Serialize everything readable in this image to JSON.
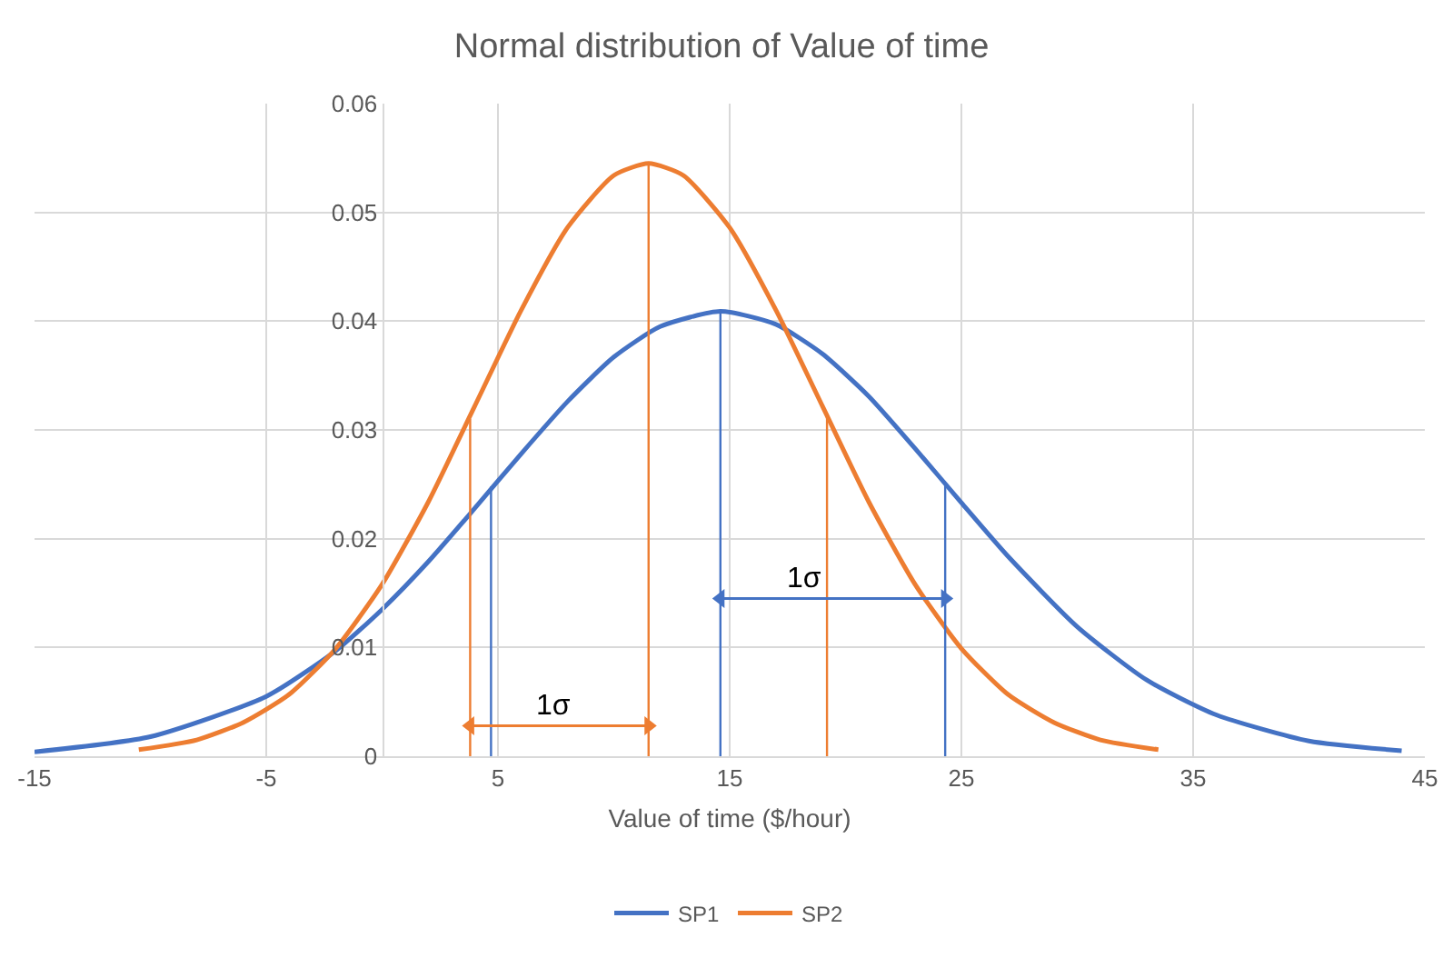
{
  "chart_data": {
    "type": "line",
    "title": "Normal distribution of Value of time",
    "xlabel": "Value of time ($/hour)",
    "xlim": [
      -15,
      45
    ],
    "xticks": [
      -15,
      -5,
      5,
      15,
      25,
      35,
      45
    ],
    "ylim": [
      0,
      0.06
    ],
    "yticks": [
      0,
      0.01,
      0.02,
      0.03,
      0.04,
      0.05,
      0.06
    ],
    "grid": true,
    "legend": "bottom",
    "marker": "none",
    "line_style": "solid",
    "series": [
      {
        "name": "SP1",
        "color": "#4472c4",
        "x": [
          -15,
          -10,
          -5,
          -2,
          0,
          2,
          4,
          6,
          8,
          10,
          12,
          14.6,
          17,
          19,
          21,
          23,
          25,
          27,
          30,
          33,
          36,
          40,
          44
        ],
        "values": [
          0.0004,
          0.0018,
          0.0055,
          0.0097,
          0.0135,
          0.0179,
          0.0228,
          0.0278,
          0.0326,
          0.0367,
          0.0395,
          0.0409,
          0.0397,
          0.037,
          0.0331,
          0.0283,
          0.0233,
          0.0184,
          0.0119,
          0.007,
          0.0038,
          0.0014,
          0.0005
        ]
      },
      {
        "name": "SP2",
        "color": "#ed7d31",
        "x": [
          -10.5,
          -8,
          -6,
          -4,
          -2,
          0,
          2,
          4,
          6,
          8,
          10,
          11.5,
          13,
          15,
          17,
          19,
          21,
          23,
          25,
          27,
          29,
          31,
          33.5
        ],
        "values": [
          0.0006,
          0.0015,
          0.0031,
          0.0057,
          0.0099,
          0.0158,
          0.0234,
          0.0322,
          0.041,
          0.0486,
          0.0534,
          0.0545,
          0.0534,
          0.0486,
          0.041,
          0.0322,
          0.0234,
          0.0158,
          0.0099,
          0.0057,
          0.0031,
          0.0015,
          0.0006
        ]
      },
      {
        "color": "#4472c4",
        "x": [
          4.7,
          4.7
        ],
        "values": [
          0,
          0.0248
        ]
      },
      {
        "color": "#4472c4",
        "x": [
          14.6,
          14.6
        ],
        "values": [
          0,
          0.0409
        ]
      },
      {
        "color": "#4472c4",
        "x": [
          24.3,
          24.3
        ],
        "values": [
          0,
          0.025
        ]
      },
      {
        "color": "#ed7d31",
        "x": [
          3.8,
          3.8
        ],
        "values": [
          0,
          0.031
        ]
      },
      {
        "color": "#ed7d31",
        "x": [
          11.5,
          11.5
        ],
        "values": [
          0,
          0.0545
        ]
      },
      {
        "color": "#ed7d31",
        "x": [
          19.2,
          19.2
        ],
        "values": [
          0,
          0.0315
        ]
      },
      {
        "color": "#4472c4",
        "marker": "triangle",
        "x": [
          14.6,
          24.3
        ],
        "values": [
          0.0145,
          0.0145
        ]
      },
      {
        "color": "#ed7d31",
        "marker": "triangle",
        "x": [
          3.8,
          11.5
        ],
        "values": [
          0.0028,
          0.0028
        ]
      }
    ],
    "annotations": [
      {
        "text": "1σ",
        "x": 18.2,
        "y": 0.0145
      },
      {
        "text": "1σ",
        "x": 7.4,
        "y": 0.0028
      }
    ]
  }
}
